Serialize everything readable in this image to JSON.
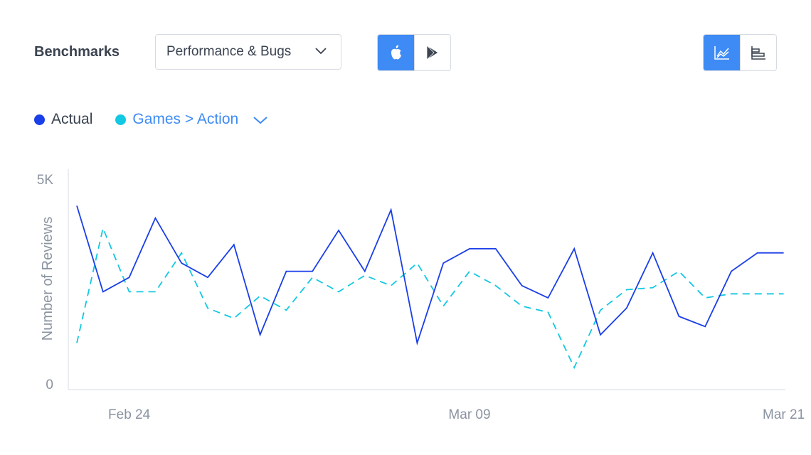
{
  "header": {
    "title": "Benchmarks",
    "dropdown_value": "Performance & Bugs"
  },
  "platform_toggle": {
    "selected": "ios",
    "options": [
      "apple-icon",
      "google-play-icon"
    ]
  },
  "view_toggle": {
    "selected": "line",
    "options": [
      "line-chart-icon",
      "bar-chart-icon"
    ]
  },
  "colors": {
    "accent": "#3e8bf5",
    "actual": "#1a3ee8",
    "benchmark": "#13c8e2",
    "text": "#3b4350",
    "muted": "#8a93a0"
  },
  "legend": {
    "actual_label": "Actual",
    "benchmark_label": "Games > Action"
  },
  "chart_data": {
    "type": "line",
    "title": "",
    "xlabel": "",
    "ylabel": "Number of Reviews",
    "y_tick_labels": [
      "5K",
      "0"
    ],
    "ylim": [
      0,
      5000
    ],
    "x_tick_labels": [
      {
        "label": "Feb 24",
        "index": 2
      },
      {
        "label": "Mar 09",
        "index": 15
      },
      {
        "label": "Mar 21",
        "index": 27
      }
    ],
    "grid": false,
    "legend_position": "top-left",
    "series": [
      {
        "name": "Actual",
        "style": "solid",
        "values": [
          4350,
          2250,
          2600,
          4050,
          2950,
          2600,
          3400,
          1200,
          2750,
          2750,
          3750,
          2750,
          4250,
          1000,
          2950,
          3300,
          3300,
          2400,
          2100,
          3300,
          1200,
          1850,
          3200,
          1650,
          1400,
          2750,
          3200,
          3200
        ]
      },
      {
        "name": "Games > Action",
        "style": "dashed",
        "values": [
          1000,
          3800,
          2250,
          2250,
          3200,
          1850,
          1600,
          2150,
          1800,
          2600,
          2250,
          2650,
          2400,
          2950,
          1900,
          2750,
          2400,
          1900,
          1750,
          400,
          1800,
          2300,
          2350,
          2750,
          2100,
          2200,
          2200,
          2200
        ]
      }
    ]
  }
}
